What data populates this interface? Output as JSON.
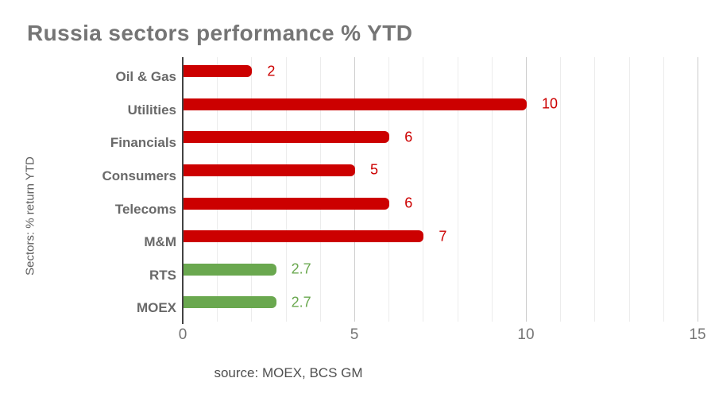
{
  "chart_data": {
    "type": "bar",
    "orientation": "horizontal",
    "title": "Russia sectors performance % YTD",
    "ylabel": "Sectors: % return YTD",
    "xlabel": "",
    "source": "source: MOEX, BCS GM",
    "categories": [
      "Oil & Gas",
      "Utilities",
      "Financials",
      "Consumers",
      "Telecoms",
      "M&M",
      "RTS",
      "MOEX"
    ],
    "values": [
      2,
      10,
      6,
      5,
      6,
      7,
      2.7,
      2.7
    ],
    "value_labels": [
      "2",
      "10",
      "6",
      "5",
      "6",
      "7",
      "2.7",
      "2.7"
    ],
    "bar_colors": [
      "#cc0000",
      "#cc0000",
      "#cc0000",
      "#cc0000",
      "#cc0000",
      "#cc0000",
      "#6aa84f",
      "#6aa84f"
    ],
    "xlim": [
      0,
      15
    ],
    "xticks": [
      0,
      5,
      10,
      15
    ],
    "minor_grid_step": 1,
    "major_grid_step": 5,
    "grid": "vertical",
    "legend": "none",
    "styles": {
      "background": "#ffffff",
      "title_color": "#757575",
      "category_color": "#696969",
      "tick_color": "#757575",
      "axis_color": "#424242",
      "minor_grid_color": "#ececec",
      "major_grid_color": "#cccccc",
      "source_color": "#4f4f4f",
      "ylabel_color": "#5f5f5f",
      "red": "#cc0000",
      "green": "#6aa84f"
    }
  }
}
